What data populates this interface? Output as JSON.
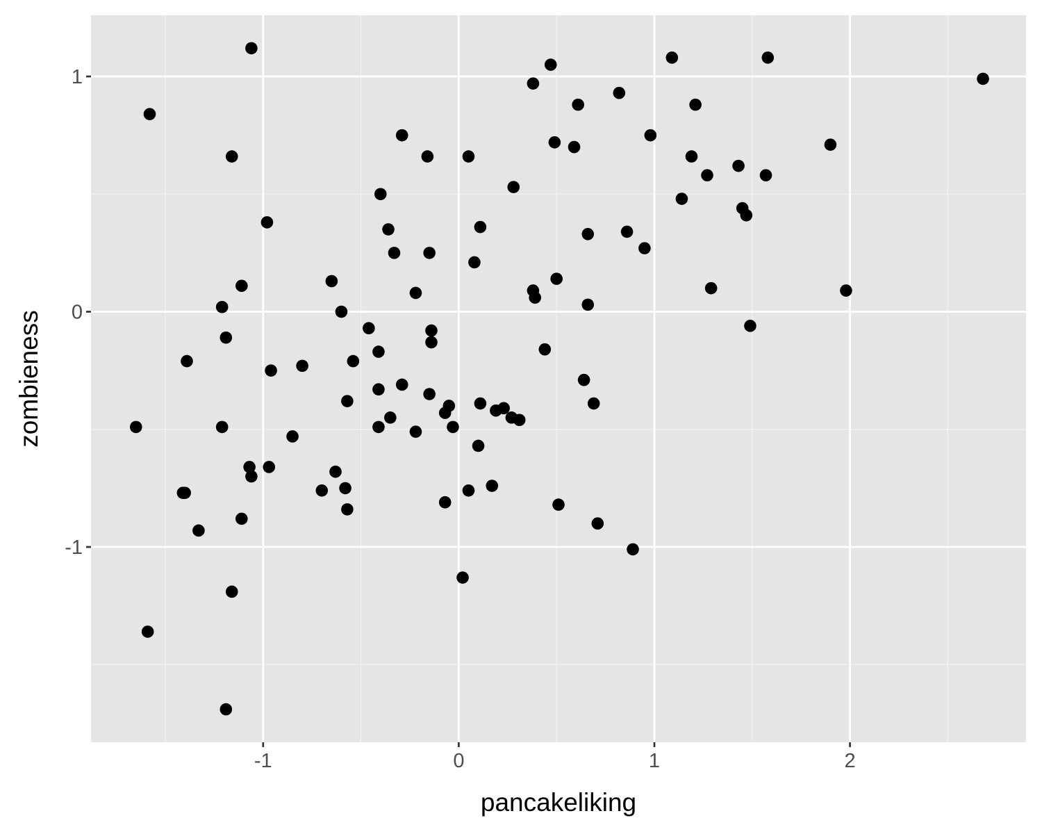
{
  "chart_data": {
    "type": "scatter",
    "title": "",
    "xlabel": "pancakeliking",
    "ylabel": "zombieness",
    "xlim": [
      -1.88,
      2.9
    ],
    "ylim": [
      -1.83,
      1.26
    ],
    "x_ticks": [
      -1,
      0,
      1,
      2
    ],
    "x_tick_labels": [
      "-1",
      "0",
      "1",
      "2"
    ],
    "x_minor_ticks": [
      -1.5,
      -0.5,
      0.5,
      1.5,
      2.5
    ],
    "y_ticks": [
      -1,
      0,
      1
    ],
    "y_tick_labels": [
      "-1",
      "0",
      "1"
    ],
    "y_minor_ticks": [
      -1.5,
      -0.5,
      0.5
    ],
    "grid": true,
    "legend": "none",
    "colors": {
      "panel_background": "#e5e5e5",
      "grid_major": "#ffffff",
      "grid_minor": "#f2f2f2",
      "points": "#000000",
      "tick_text": "#4d4d4d",
      "axis_title": "#000000"
    },
    "points": [
      {
        "x": -1.65,
        "y": -0.49
      },
      {
        "x": -1.58,
        "y": 0.84
      },
      {
        "x": -1.59,
        "y": -1.36
      },
      {
        "x": -1.41,
        "y": -0.77
      },
      {
        "x": -1.4,
        "y": -0.77
      },
      {
        "x": -1.39,
        "y": -0.21
      },
      {
        "x": -1.33,
        "y": -0.93
      },
      {
        "x": -1.21,
        "y": -0.49
      },
      {
        "x": -1.21,
        "y": 0.02
      },
      {
        "x": -1.19,
        "y": -0.11
      },
      {
        "x": -1.19,
        "y": -1.69
      },
      {
        "x": -1.16,
        "y": 0.66
      },
      {
        "x": -1.16,
        "y": -1.19
      },
      {
        "x": -1.11,
        "y": 0.11
      },
      {
        "x": -1.11,
        "y": -0.88
      },
      {
        "x": -1.06,
        "y": 1.12
      },
      {
        "x": -1.07,
        "y": -0.66
      },
      {
        "x": -1.06,
        "y": -0.7
      },
      {
        "x": -0.98,
        "y": 0.38
      },
      {
        "x": -0.96,
        "y": -0.25
      },
      {
        "x": -0.97,
        "y": -0.66
      },
      {
        "x": -0.85,
        "y": -0.53
      },
      {
        "x": -0.8,
        "y": -0.23
      },
      {
        "x": -0.7,
        "y": -0.76
      },
      {
        "x": -0.65,
        "y": 0.13
      },
      {
        "x": -0.63,
        "y": -0.68
      },
      {
        "x": -0.6,
        "y": 0.0
      },
      {
        "x": -0.58,
        "y": -0.75
      },
      {
        "x": -0.57,
        "y": -0.38
      },
      {
        "x": -0.57,
        "y": -0.84
      },
      {
        "x": -0.54,
        "y": -0.21
      },
      {
        "x": -0.46,
        "y": -0.07
      },
      {
        "x": -0.41,
        "y": -0.17
      },
      {
        "x": -0.41,
        "y": -0.33
      },
      {
        "x": -0.41,
        "y": -0.49
      },
      {
        "x": -0.4,
        "y": 0.5
      },
      {
        "x": -0.36,
        "y": 0.35
      },
      {
        "x": -0.35,
        "y": -0.45
      },
      {
        "x": -0.33,
        "y": 0.25
      },
      {
        "x": -0.29,
        "y": 0.75
      },
      {
        "x": -0.29,
        "y": -0.31
      },
      {
        "x": -0.22,
        "y": 0.08
      },
      {
        "x": -0.22,
        "y": -0.51
      },
      {
        "x": -0.16,
        "y": 0.66
      },
      {
        "x": -0.15,
        "y": 0.25
      },
      {
        "x": -0.14,
        "y": -0.08
      },
      {
        "x": -0.14,
        "y": -0.13
      },
      {
        "x": -0.15,
        "y": -0.35
      },
      {
        "x": -0.07,
        "y": -0.43
      },
      {
        "x": -0.05,
        "y": -0.4
      },
      {
        "x": -0.07,
        "y": -0.81
      },
      {
        "x": -0.03,
        "y": -0.49
      },
      {
        "x": 0.02,
        "y": -1.13
      },
      {
        "x": 0.05,
        "y": 0.66
      },
      {
        "x": 0.05,
        "y": -0.76
      },
      {
        "x": 0.08,
        "y": 0.21
      },
      {
        "x": 0.1,
        "y": -0.57
      },
      {
        "x": 0.11,
        "y": 0.36
      },
      {
        "x": 0.11,
        "y": -0.39
      },
      {
        "x": 0.17,
        "y": -0.74
      },
      {
        "x": 0.19,
        "y": -0.42
      },
      {
        "x": 0.23,
        "y": -0.41
      },
      {
        "x": 0.27,
        "y": -0.45
      },
      {
        "x": 0.28,
        "y": 0.53
      },
      {
        "x": 0.31,
        "y": -0.46
      },
      {
        "x": 0.38,
        "y": 0.97
      },
      {
        "x": 0.38,
        "y": 0.09
      },
      {
        "x": 0.39,
        "y": 0.06
      },
      {
        "x": 0.44,
        "y": -0.16
      },
      {
        "x": 0.47,
        "y": 1.05
      },
      {
        "x": 0.49,
        "y": 0.72
      },
      {
        "x": 0.5,
        "y": 0.14
      },
      {
        "x": 0.51,
        "y": -0.82
      },
      {
        "x": 0.59,
        "y": 0.7
      },
      {
        "x": 0.61,
        "y": 0.88
      },
      {
        "x": 0.64,
        "y": -0.29
      },
      {
        "x": 0.66,
        "y": 0.33
      },
      {
        "x": 0.66,
        "y": 0.03
      },
      {
        "x": 0.69,
        "y": -0.39
      },
      {
        "x": 0.71,
        "y": -0.9
      },
      {
        "x": 0.82,
        "y": 0.93
      },
      {
        "x": 0.86,
        "y": 0.34
      },
      {
        "x": 0.89,
        "y": -1.01
      },
      {
        "x": 0.95,
        "y": 0.27
      },
      {
        "x": 0.98,
        "y": 0.75
      },
      {
        "x": 1.09,
        "y": 1.08
      },
      {
        "x": 1.14,
        "y": 0.48
      },
      {
        "x": 1.19,
        "y": 0.66
      },
      {
        "x": 1.21,
        "y": 0.88
      },
      {
        "x": 1.27,
        "y": 0.58
      },
      {
        "x": 1.29,
        "y": 0.1
      },
      {
        "x": 1.43,
        "y": 0.62
      },
      {
        "x": 1.45,
        "y": 0.44
      },
      {
        "x": 1.47,
        "y": 0.41
      },
      {
        "x": 1.49,
        "y": -0.06
      },
      {
        "x": 1.57,
        "y": 0.58
      },
      {
        "x": 1.58,
        "y": 1.08
      },
      {
        "x": 1.9,
        "y": 0.71
      },
      {
        "x": 1.98,
        "y": 0.09
      },
      {
        "x": 2.68,
        "y": 0.99
      }
    ]
  }
}
